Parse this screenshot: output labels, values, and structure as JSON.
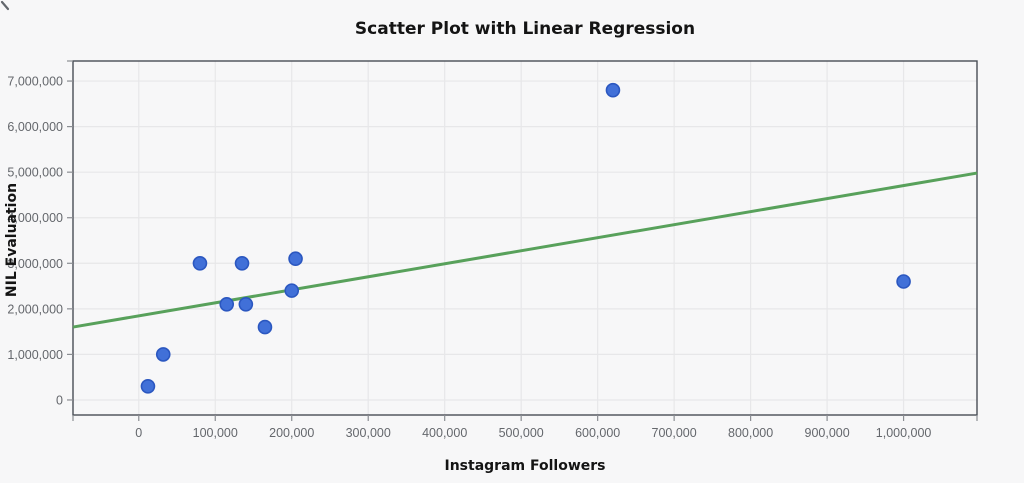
{
  "page": {
    "background_color": "#f7f7f8"
  },
  "chart_data": {
    "type": "scatter",
    "title": "Scatter Plot with Linear Regression",
    "xlabel": "Instagram Followers",
    "ylabel": "NIL Evaluation",
    "xlim": [
      -86000,
      1096000
    ],
    "ylim": [
      -330000,
      7440000
    ],
    "grid": true,
    "legend": "none",
    "x_ticks": [
      {
        "value": 0,
        "label": "0"
      },
      {
        "value": 100000,
        "label": "100,000"
      },
      {
        "value": 200000,
        "label": "200,000"
      },
      {
        "value": 300000,
        "label": "300,000"
      },
      {
        "value": 400000,
        "label": "400,000"
      },
      {
        "value": 500000,
        "label": "500,000"
      },
      {
        "value": 600000,
        "label": "600,000"
      },
      {
        "value": 700000,
        "label": "700,000"
      },
      {
        "value": 800000,
        "label": "800,000"
      },
      {
        "value": 900000,
        "label": "900,000"
      },
      {
        "value": 1000000,
        "label": "1,000,000"
      }
    ],
    "y_ticks": [
      {
        "value": 0,
        "label": "0"
      },
      {
        "value": 1000000,
        "label": "1,000,000"
      },
      {
        "value": 2000000,
        "label": "2,000,000"
      },
      {
        "value": 3000000,
        "label": "3,000,000"
      },
      {
        "value": 4000000,
        "label": "4,000,000"
      },
      {
        "value": 5000000,
        "label": "5,000,000"
      },
      {
        "value": 6000000,
        "label": "6,000,000"
      },
      {
        "value": 7000000,
        "label": "7,000,000"
      }
    ],
    "points": [
      {
        "x": 12000,
        "y": 300000
      },
      {
        "x": 32000,
        "y": 1000000
      },
      {
        "x": 80000,
        "y": 3000000
      },
      {
        "x": 115000,
        "y": 2100000
      },
      {
        "x": 135000,
        "y": 3000000
      },
      {
        "x": 140000,
        "y": 2100000
      },
      {
        "x": 165000,
        "y": 1600000
      },
      {
        "x": 200000,
        "y": 2400000
      },
      {
        "x": 205000,
        "y": 3100000
      },
      {
        "x": 620000,
        "y": 6800000
      },
      {
        "x": 1000000,
        "y": 2600000
      }
    ],
    "regression_line": {
      "x1": -86000,
      "y1": 1600000,
      "x2": 1096000,
      "y2": 4980000
    },
    "colors": {
      "point_fill": "#4170d8",
      "point_stroke": "#2b57c0",
      "regression_line": "#58a15b",
      "gridline": "#e7e7e9",
      "plot_border": "#494d55",
      "tick": "#8a8d92",
      "tick_label": "#64676c"
    }
  }
}
